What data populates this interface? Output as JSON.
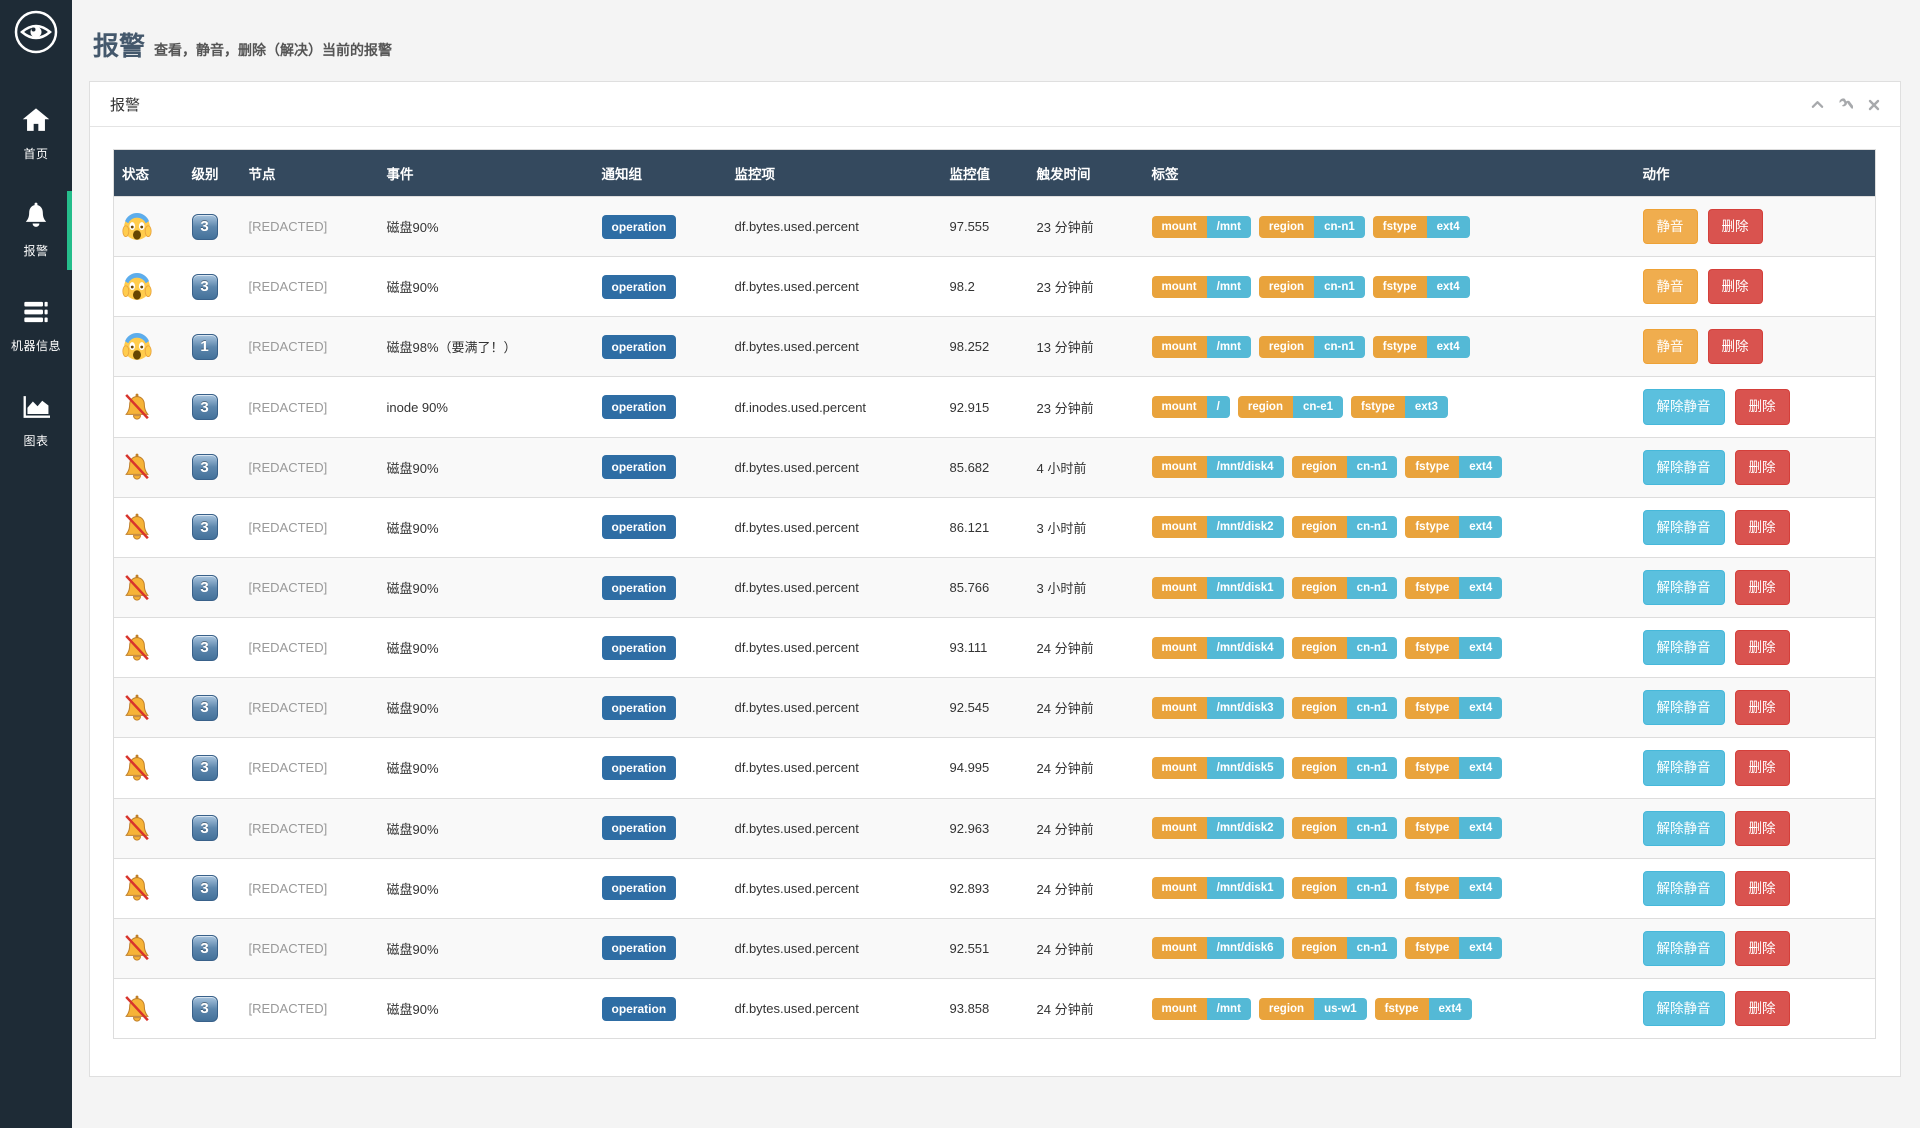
{
  "sidebar": {
    "items": [
      {
        "id": "home",
        "label": "首页",
        "icon": "home-icon",
        "active": false
      },
      {
        "id": "alarms",
        "label": "报警",
        "icon": "bell-icon",
        "active": true
      },
      {
        "id": "machines",
        "label": "机器信息",
        "icon": "servers-icon",
        "active": false
      },
      {
        "id": "charts",
        "label": "图表",
        "icon": "chart-icon",
        "active": false
      }
    ]
  },
  "page": {
    "title": "报警",
    "subtitle": "查看，静音，删除（解决）当前的报警"
  },
  "panel": {
    "title": "报警",
    "tools": [
      "collapse",
      "settings",
      "close"
    ]
  },
  "table": {
    "columns": [
      "状态",
      "级别",
      "节点",
      "事件",
      "通知组",
      "监控项",
      "监控值",
      "触发时间",
      "标签",
      "动作"
    ],
    "action_labels": {
      "mute": "静音",
      "unmute": "解除静音",
      "delete": "删除"
    },
    "status_icons": {
      "screaming": "screaming-face-icon",
      "muted": "muted-bell-icon"
    },
    "rows": [
      {
        "status": "screaming",
        "level": "3",
        "node": "[REDACTED]",
        "event": "磁盘90%",
        "group": "operation",
        "metric": "df.bytes.used.percent",
        "value": "97.555",
        "time": "23 分钟前",
        "tags": [
          [
            "mount",
            "/mnt"
          ],
          [
            "region",
            "cn-n1"
          ],
          [
            "fstype",
            "ext4"
          ]
        ],
        "actions": [
          "mute",
          "delete"
        ]
      },
      {
        "status": "screaming",
        "level": "3",
        "node": "[REDACTED]",
        "event": "磁盘90%",
        "group": "operation",
        "metric": "df.bytes.used.percent",
        "value": "98.2",
        "time": "23 分钟前",
        "tags": [
          [
            "mount",
            "/mnt"
          ],
          [
            "region",
            "cn-n1"
          ],
          [
            "fstype",
            "ext4"
          ]
        ],
        "actions": [
          "mute",
          "delete"
        ]
      },
      {
        "status": "screaming",
        "level": "1",
        "node": "[REDACTED]",
        "event": "磁盘98%（要满了！）",
        "group": "operation",
        "metric": "df.bytes.used.percent",
        "value": "98.252",
        "time": "13 分钟前",
        "tags": [
          [
            "mount",
            "/mnt"
          ],
          [
            "region",
            "cn-n1"
          ],
          [
            "fstype",
            "ext4"
          ]
        ],
        "actions": [
          "mute",
          "delete"
        ]
      },
      {
        "status": "muted",
        "level": "3",
        "node": "[REDACTED]",
        "event": "inode 90%",
        "group": "operation",
        "metric": "df.inodes.used.percent",
        "value": "92.915",
        "time": "23 分钟前",
        "tags": [
          [
            "mount",
            "/"
          ],
          [
            "region",
            "cn-e1"
          ],
          [
            "fstype",
            "ext3"
          ]
        ],
        "actions": [
          "unmute",
          "delete"
        ]
      },
      {
        "status": "muted",
        "level": "3",
        "node": "[REDACTED]",
        "event": "磁盘90%",
        "group": "operation",
        "metric": "df.bytes.used.percent",
        "value": "85.682",
        "time": "4 小时前",
        "tags": [
          [
            "mount",
            "/mnt/disk4"
          ],
          [
            "region",
            "cn-n1"
          ],
          [
            "fstype",
            "ext4"
          ]
        ],
        "actions": [
          "unmute",
          "delete"
        ]
      },
      {
        "status": "muted",
        "level": "3",
        "node": "[REDACTED]",
        "event": "磁盘90%",
        "group": "operation",
        "metric": "df.bytes.used.percent",
        "value": "86.121",
        "time": "3 小时前",
        "tags": [
          [
            "mount",
            "/mnt/disk2"
          ],
          [
            "region",
            "cn-n1"
          ],
          [
            "fstype",
            "ext4"
          ]
        ],
        "actions": [
          "unmute",
          "delete"
        ]
      },
      {
        "status": "muted",
        "level": "3",
        "node": "[REDACTED]",
        "event": "磁盘90%",
        "group": "operation",
        "metric": "df.bytes.used.percent",
        "value": "85.766",
        "time": "3 小时前",
        "tags": [
          [
            "mount",
            "/mnt/disk1"
          ],
          [
            "region",
            "cn-n1"
          ],
          [
            "fstype",
            "ext4"
          ]
        ],
        "actions": [
          "unmute",
          "delete"
        ]
      },
      {
        "status": "muted",
        "level": "3",
        "node": "[REDACTED]",
        "event": "磁盘90%",
        "group": "operation",
        "metric": "df.bytes.used.percent",
        "value": "93.111",
        "time": "24 分钟前",
        "tags": [
          [
            "mount",
            "/mnt/disk4"
          ],
          [
            "region",
            "cn-n1"
          ],
          [
            "fstype",
            "ext4"
          ]
        ],
        "actions": [
          "unmute",
          "delete"
        ]
      },
      {
        "status": "muted",
        "level": "3",
        "node": "[REDACTED]",
        "event": "磁盘90%",
        "group": "operation",
        "metric": "df.bytes.used.percent",
        "value": "92.545",
        "time": "24 分钟前",
        "tags": [
          [
            "mount",
            "/mnt/disk3"
          ],
          [
            "region",
            "cn-n1"
          ],
          [
            "fstype",
            "ext4"
          ]
        ],
        "actions": [
          "unmute",
          "delete"
        ]
      },
      {
        "status": "muted",
        "level": "3",
        "node": "[REDACTED]",
        "event": "磁盘90%",
        "group": "operation",
        "metric": "df.bytes.used.percent",
        "value": "94.995",
        "time": "24 分钟前",
        "tags": [
          [
            "mount",
            "/mnt/disk5"
          ],
          [
            "region",
            "cn-n1"
          ],
          [
            "fstype",
            "ext4"
          ]
        ],
        "actions": [
          "unmute",
          "delete"
        ]
      },
      {
        "status": "muted",
        "level": "3",
        "node": "[REDACTED]",
        "event": "磁盘90%",
        "group": "operation",
        "metric": "df.bytes.used.percent",
        "value": "92.963",
        "time": "24 分钟前",
        "tags": [
          [
            "mount",
            "/mnt/disk2"
          ],
          [
            "region",
            "cn-n1"
          ],
          [
            "fstype",
            "ext4"
          ]
        ],
        "actions": [
          "unmute",
          "delete"
        ]
      },
      {
        "status": "muted",
        "level": "3",
        "node": "[REDACTED]",
        "event": "磁盘90%",
        "group": "operation",
        "metric": "df.bytes.used.percent",
        "value": "92.893",
        "time": "24 分钟前",
        "tags": [
          [
            "mount",
            "/mnt/disk1"
          ],
          [
            "region",
            "cn-n1"
          ],
          [
            "fstype",
            "ext4"
          ]
        ],
        "actions": [
          "unmute",
          "delete"
        ]
      },
      {
        "status": "muted",
        "level": "3",
        "node": "[REDACTED]",
        "event": "磁盘90%",
        "group": "operation",
        "metric": "df.bytes.used.percent",
        "value": "92.551",
        "time": "24 分钟前",
        "tags": [
          [
            "mount",
            "/mnt/disk6"
          ],
          [
            "region",
            "cn-n1"
          ],
          [
            "fstype",
            "ext4"
          ]
        ],
        "actions": [
          "unmute",
          "delete"
        ]
      },
      {
        "status": "muted",
        "level": "3",
        "node": "[REDACTED]",
        "event": "磁盘90%",
        "group": "operation",
        "metric": "df.bytes.used.percent",
        "value": "93.858",
        "time": "24 分钟前",
        "tags": [
          [
            "mount",
            "/mnt"
          ],
          [
            "region",
            "us-w1"
          ],
          [
            "fstype",
            "ext4"
          ]
        ],
        "actions": [
          "unmute",
          "delete"
        ]
      }
    ]
  },
  "colors": {
    "sidebar_bg": "#1e2b36",
    "active_green": "#25bd8b",
    "table_header_bg": "#34495e",
    "group_badge_blue": "#2e6da4",
    "tag_key_orange": "#e9a33c",
    "tag_value_blue": "#54b9d6",
    "mute_button": "#f0ad4e",
    "unmute_button": "#5bc0de",
    "delete_button": "#d9534f",
    "page_bg": "#f4f4f4"
  }
}
